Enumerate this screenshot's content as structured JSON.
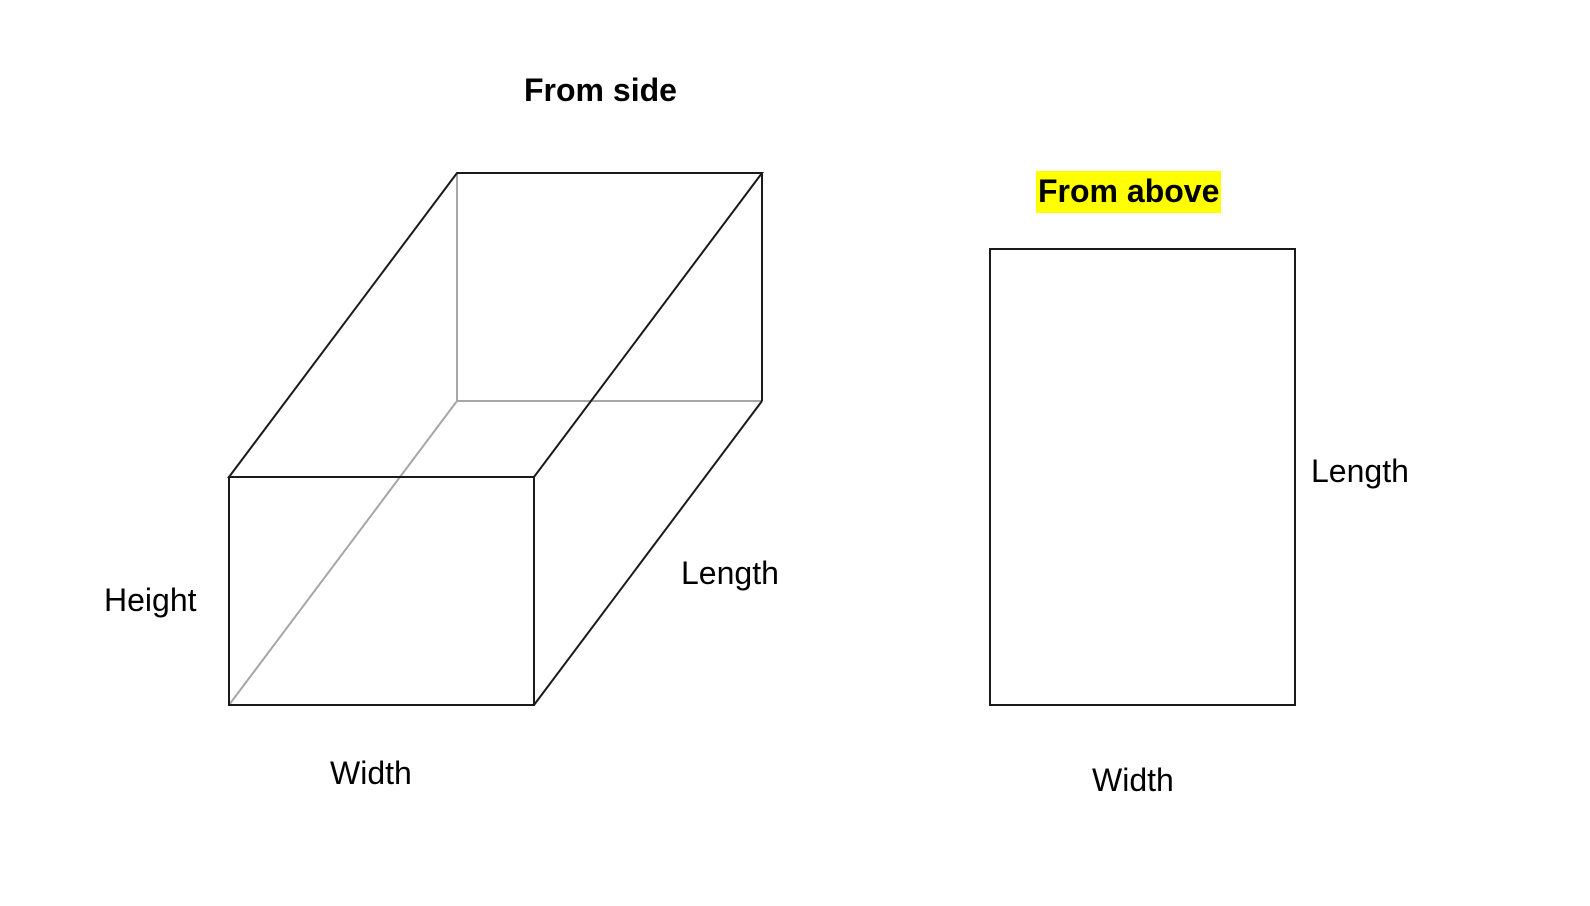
{
  "side_view": {
    "title": "From side",
    "height_label": "Height",
    "width_label": "Width",
    "length_label": "Length"
  },
  "top_view": {
    "title": "From above",
    "title_highlight_color": "#ffff00",
    "length_label": "Length",
    "width_label": "Width"
  },
  "colors": {
    "visible_edge": "#1a1a1a",
    "hidden_edge": "#a6a6a6",
    "background": "#ffffff"
  }
}
